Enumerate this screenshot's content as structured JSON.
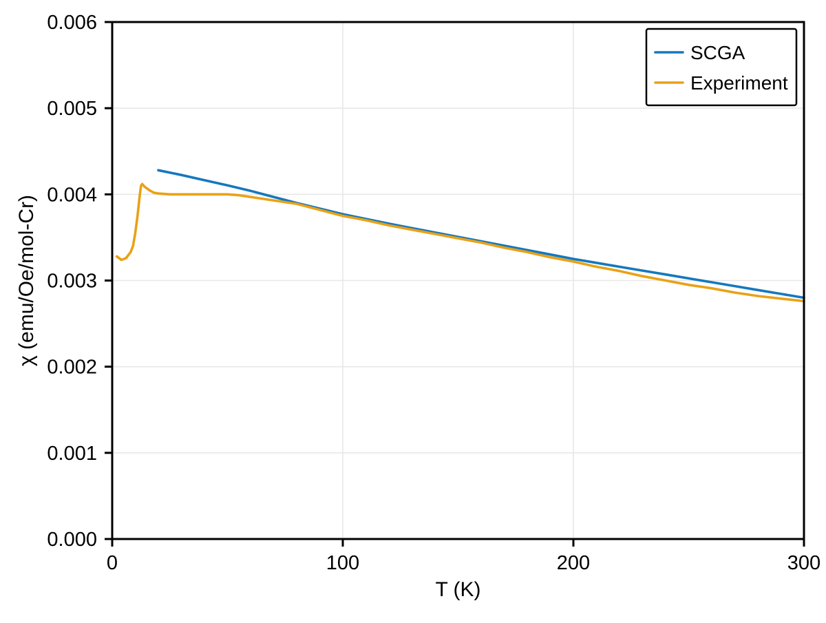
{
  "chart_data": {
    "type": "line",
    "title": "",
    "xlabel": "T (K)",
    "ylabel": "χ (emu/Oe/mol-Cr)",
    "xlim": [
      0,
      300
    ],
    "ylim": [
      0,
      0.006
    ],
    "xticks": [
      0,
      100,
      200,
      300
    ],
    "xtick_labels": [
      "0",
      "100",
      "200",
      "300"
    ],
    "yticks": [
      0,
      0.001,
      0.002,
      0.003,
      0.004,
      0.005,
      0.006
    ],
    "ytick_labels": [
      "0.000",
      "0.001",
      "0.002",
      "0.003",
      "0.004",
      "0.005",
      "0.006"
    ],
    "grid": true,
    "grid_color": "#e7e7e7",
    "axis_color": "#000000",
    "background_color": "#ffffff",
    "legend": {
      "position": "upper right",
      "entries": [
        {
          "label": "SCGA",
          "color": "#1578be"
        },
        {
          "label": "Experiment",
          "color": "#e9a115"
        }
      ]
    },
    "series": [
      {
        "name": "SCGA",
        "color": "#1578be",
        "x": [
          20,
          30,
          40,
          50,
          60,
          70,
          80,
          90,
          100,
          110,
          120,
          130,
          140,
          150,
          160,
          170,
          180,
          190,
          200,
          210,
          220,
          230,
          240,
          250,
          260,
          270,
          280,
          290,
          300
        ],
        "y": [
          0.00428,
          0.004225,
          0.004165,
          0.004105,
          0.00404,
          0.00397,
          0.0039,
          0.003835,
          0.00377,
          0.003715,
          0.00366,
          0.003608,
          0.003557,
          0.003506,
          0.003455,
          0.003404,
          0.003353,
          0.003302,
          0.00325,
          0.003205,
          0.00316,
          0.003115,
          0.00307,
          0.003025,
          0.00298,
          0.002935,
          0.00289,
          0.002845,
          0.0028
        ]
      },
      {
        "name": "Experiment",
        "color": "#e9a115",
        "x": [
          2,
          4,
          6,
          8,
          9,
          10,
          11,
          12,
          12.5,
          13,
          14,
          16,
          18,
          20,
          25,
          30,
          35,
          40,
          45,
          50,
          55,
          60,
          70,
          80,
          90,
          100,
          110,
          120,
          130,
          140,
          150,
          160,
          170,
          180,
          190,
          200,
          210,
          220,
          230,
          240,
          250,
          260,
          270,
          280,
          290,
          300
        ],
        "y": [
          0.00328,
          0.00324,
          0.00326,
          0.00333,
          0.0034,
          0.00355,
          0.00375,
          0.004,
          0.0041,
          0.00412,
          0.00409,
          0.00405,
          0.00402,
          0.00401,
          0.004,
          0.004,
          0.004,
          0.004,
          0.004,
          0.004,
          0.00399,
          0.00397,
          0.00393,
          0.00389,
          0.00382,
          0.00375,
          0.0037,
          0.00364,
          0.00359,
          0.00354,
          0.00349,
          0.00344,
          0.00338,
          0.00333,
          0.00327,
          0.00322,
          0.00316,
          0.00311,
          0.00305,
          0.003,
          0.00295,
          0.00291,
          0.00286,
          0.00282,
          0.00279,
          0.00276
        ]
      }
    ]
  }
}
